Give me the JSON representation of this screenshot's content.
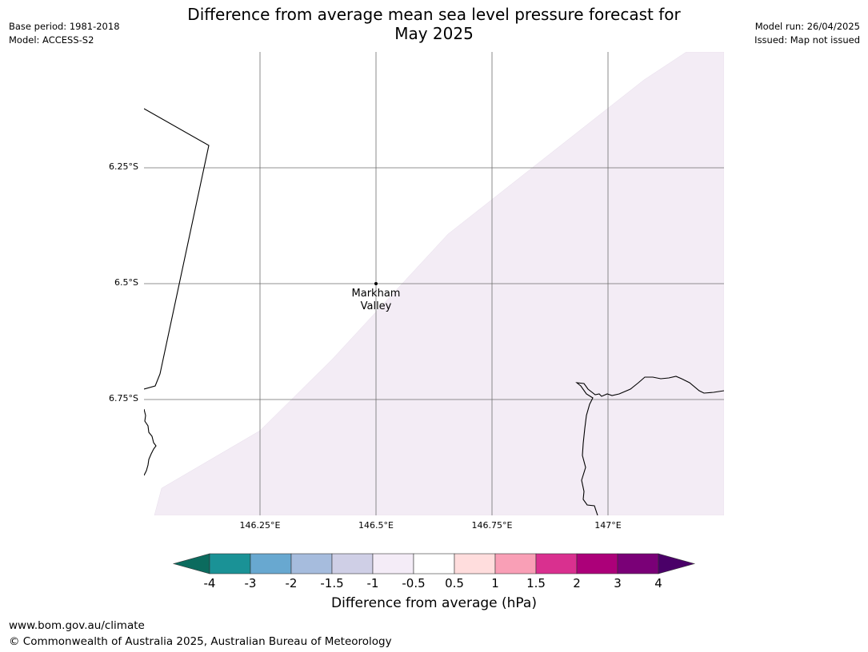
{
  "header": {
    "title": "Difference from average mean sea level pressure forecast for\nMay 2025",
    "base_period": "Base period: 1981-2018",
    "model": "Model: ACCESS-S2",
    "model_run": "Model run: 26/04/2025",
    "issued": "Issued: Map not issued"
  },
  "map": {
    "lat_labels": [
      "6.25°S",
      "6.5°S",
      "6.75°S"
    ],
    "lon_labels": [
      "146.25°E",
      "146.5°E",
      "146.75°E",
      "147°E"
    ],
    "place": {
      "name": "Markham\nValley",
      "icon": "location-dot-icon"
    },
    "region_color": "#f3ecf5"
  },
  "legend": {
    "title": "Difference from average (hPa)",
    "ticks": [
      "-4",
      "-3",
      "-2",
      "-1.5",
      "-1",
      "-0.5",
      "0.5",
      "1",
      "1.5",
      "2",
      "3",
      "4"
    ],
    "colors": {
      "under": "#0b6b5e",
      "bins": [
        "#1a9296",
        "#68a8d0",
        "#a6bcdd",
        "#cfcfe6",
        "#f4ecf7",
        "#ffffff",
        "#ffdddd",
        "#f99fb6",
        "#d9308f",
        "#ac0079",
        "#7a0077"
      ],
      "over": "#4a0068"
    }
  },
  "footer": {
    "url": "www.bom.gov.au/climate",
    "copyright": "© Commonwealth of Australia 2025, Australian Bureau of Meteorology"
  }
}
